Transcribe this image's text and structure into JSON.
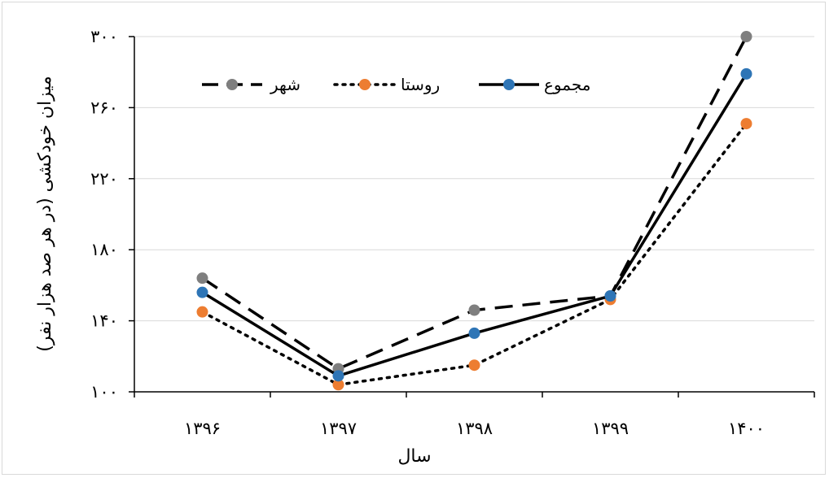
{
  "chart_data": {
    "type": "line",
    "xlabel": "سال",
    "ylabel": "میزان خودکشی (در هر صد هزار نفر)",
    "categories": [
      "۱۳۹۶",
      "۱۳۹۷",
      "۱۳۹۸",
      "۱۳۹۹",
      "۱۴۰۰"
    ],
    "ylim": [
      100,
      300
    ],
    "yticks": [
      100,
      140,
      180,
      220,
      260,
      300
    ],
    "ytick_labels": [
      "۱۰۰",
      "۱۴۰",
      "۱۸۰",
      "۲۲۰",
      "۲۶۰",
      "۳۰۰"
    ],
    "grid": "horizontal",
    "legend_position": "top",
    "series": [
      {
        "name": "شهر",
        "values": [
          164,
          113,
          146,
          154,
          300
        ],
        "color": "#000000",
        "marker_color": "#7f7f7f",
        "line_style": "dashed"
      },
      {
        "name": "روستا",
        "values": [
          145,
          104,
          115,
          152,
          251
        ],
        "color": "#000000",
        "marker_color": "#ed7d31",
        "line_style": "dotted"
      },
      {
        "name": "مجموع",
        "values": [
          156,
          109,
          133,
          154,
          279
        ],
        "color": "#000000",
        "marker_color": "#2e75b6",
        "line_style": "solid"
      }
    ]
  }
}
